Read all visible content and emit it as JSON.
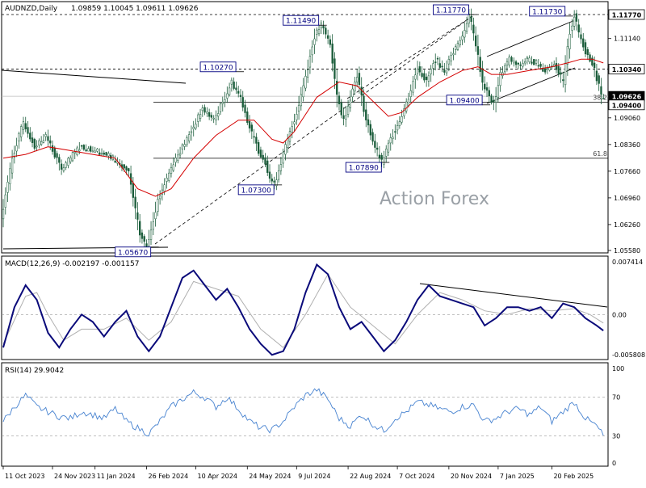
{
  "header": {
    "symbol": "AUDNZD,Daily",
    "ohlc": "1.09859 1.10045 1.09611 1.09626"
  },
  "watermark": "Action Forex",
  "colors": {
    "candle": "#1a5c3a",
    "ema": "#d40000",
    "macd_line": "#0a0a7a",
    "macd_signal": "#b0b0b0",
    "rsi": "#4682d0",
    "level_box": "#000080"
  },
  "chart_data": [
    {
      "type": "candlestick",
      "name": "price",
      "title": "AUDNZD,Daily",
      "ylim": [
        1.0558,
        1.1177
      ],
      "y_ticks": [
        "1.11770",
        "1.11140",
        "1.10340",
        "1.09626",
        "1.09400",
        "1.09060",
        "1.08360",
        "1.07660",
        "1.06960",
        "1.06260",
        "1.05580"
      ],
      "current_price": 1.09626,
      "close_path": [
        [
          0,
          1.064
        ],
        [
          5,
          1.08
        ],
        [
          10,
          1.0895
        ],
        [
          15,
          1.083
        ],
        [
          20,
          1.086
        ],
        [
          27,
          1.077
        ],
        [
          35,
          1.083
        ],
        [
          43,
          1.082
        ],
        [
          50,
          1.08
        ],
        [
          57,
          1.076
        ],
        [
          62,
          1.06
        ],
        [
          65,
          1.0567
        ],
        [
          70,
          1.069
        ],
        [
          77,
          1.079
        ],
        [
          84,
          1.086
        ],
        [
          90,
          1.093
        ],
        [
          95,
          1.09
        ],
        [
          100,
          1.096
        ],
        [
          103,
          1.1
        ],
        [
          107,
          1.096
        ],
        [
          111,
          1.088
        ],
        [
          115,
          1.082
        ],
        [
          118,
          1.079
        ],
        [
          120,
          1.075
        ],
        [
          122,
          1.073
        ],
        [
          127,
          1.083
        ],
        [
          132,
          1.092
        ],
        [
          137,
          1.104
        ],
        [
          140,
          1.112
        ],
        [
          143,
          1.1149
        ],
        [
          147,
          1.11
        ],
        [
          150,
          1.096
        ],
        [
          153,
          1.09
        ],
        [
          156,
          1.096
        ],
        [
          159,
          1.102
        ],
        [
          163,
          1.09
        ],
        [
          167,
          1.083
        ],
        [
          170,
          1.0789
        ],
        [
          174,
          1.085
        ],
        [
          178,
          1.09
        ],
        [
          182,
          1.096
        ],
        [
          186,
          1.104
        ],
        [
          190,
          1.1
        ],
        [
          194,
          1.106
        ],
        [
          198,
          1.103
        ],
        [
          202,
          1.108
        ],
        [
          206,
          1.112
        ],
        [
          209,
          1.1177
        ],
        [
          212,
          1.11
        ],
        [
          215,
          1.1
        ],
        [
          218,
          1.096
        ],
        [
          220,
          1.094
        ],
        [
          223,
          1.102
        ],
        [
          227,
          1.106
        ],
        [
          231,
          1.104
        ],
        [
          235,
          1.106
        ],
        [
          239,
          1.105
        ],
        [
          243,
          1.103
        ],
        [
          247,
          1.105
        ],
        [
          251,
          1.1
        ],
        [
          254,
          1.113
        ],
        [
          256,
          1.1173
        ],
        [
          258,
          1.113
        ],
        [
          261,
          1.108
        ],
        [
          264,
          1.105
        ],
        [
          267,
          1.099
        ],
        [
          268,
          1.09626
        ]
      ],
      "ema_path": [
        [
          0,
          1.08
        ],
        [
          10,
          1.081
        ],
        [
          20,
          1.083
        ],
        [
          30,
          1.082
        ],
        [
          40,
          1.081
        ],
        [
          50,
          1.08
        ],
        [
          60,
          1.072
        ],
        [
          68,
          1.07
        ],
        [
          75,
          1.072
        ],
        [
          85,
          1.08
        ],
        [
          95,
          1.086
        ],
        [
          105,
          1.09
        ],
        [
          112,
          1.09
        ],
        [
          120,
          1.085
        ],
        [
          125,
          1.084
        ],
        [
          130,
          1.087
        ],
        [
          140,
          1.096
        ],
        [
          150,
          1.1
        ],
        [
          158,
          1.099
        ],
        [
          165,
          1.095
        ],
        [
          172,
          1.091
        ],
        [
          178,
          1.092
        ],
        [
          185,
          1.096
        ],
        [
          195,
          1.1
        ],
        [
          205,
          1.103
        ],
        [
          212,
          1.104
        ],
        [
          218,
          1.102
        ],
        [
          225,
          1.102
        ],
        [
          235,
          1.103
        ],
        [
          245,
          1.104
        ],
        [
          252,
          1.105
        ],
        [
          258,
          1.106
        ],
        [
          263,
          1.106
        ],
        [
          268,
          1.105
        ]
      ],
      "levels": [
        {
          "label": "1.05670",
          "bar": 50,
          "value": 1.0567
        },
        {
          "label": "1.10270",
          "bar": 88,
          "value": 1.1027
        },
        {
          "label": "1.07300",
          "bar": 105,
          "value": 1.073
        },
        {
          "label": "1.11490",
          "bar": 125,
          "value": 1.1149
        },
        {
          "label": "1.07890",
          "bar": 153,
          "value": 1.0789
        },
        {
          "label": "1.11770",
          "bar": 192,
          "value": 1.1177
        },
        {
          "label": "1.09400",
          "bar": 198,
          "value": 1.094
        },
        {
          "label": "1.11730",
          "bar": 235,
          "value": 1.1173
        }
      ],
      "fib": [
        {
          "label": "38.2",
          "value": 1.0947
        },
        {
          "label": "61.8",
          "value": 1.08
        }
      ],
      "price_tags": [
        {
          "label": "1.11770",
          "value": 1.1177,
          "filled": false
        },
        {
          "label": "1.10340",
          "value": 1.1034,
          "filled": false
        },
        {
          "label": "1.09626",
          "value": 1.09626,
          "filled": true
        },
        {
          "label": "1.09400",
          "value": 1.094,
          "filled": false
        }
      ]
    },
    {
      "type": "line",
      "name": "macd",
      "title": "MACD(12,26,9) -0.002197 -0.001157",
      "ylim": [
        -0.005808,
        0.007414
      ],
      "y_ticks": [
        "0.007414",
        "0.00",
        "-0.005808"
      ],
      "macd_path": [
        [
          0,
          -0.0045
        ],
        [
          5,
          0.001
        ],
        [
          10,
          0.004
        ],
        [
          15,
          0.002
        ],
        [
          20,
          -0.0025
        ],
        [
          25,
          -0.0045
        ],
        [
          30,
          -0.002
        ],
        [
          35,
          0.0
        ],
        [
          40,
          -0.001
        ],
        [
          45,
          -0.003
        ],
        [
          50,
          -0.001
        ],
        [
          55,
          0.0005
        ],
        [
          60,
          -0.003
        ],
        [
          65,
          -0.005
        ],
        [
          70,
          -0.003
        ],
        [
          75,
          0.001
        ],
        [
          80,
          0.005
        ],
        [
          85,
          0.006
        ],
        [
          90,
          0.004
        ],
        [
          95,
          0.002
        ],
        [
          100,
          0.0035
        ],
        [
          105,
          0.001
        ],
        [
          110,
          -0.002
        ],
        [
          115,
          -0.004
        ],
        [
          120,
          -0.0055
        ],
        [
          125,
          -0.005
        ],
        [
          130,
          -0.002
        ],
        [
          135,
          0.003
        ],
        [
          140,
          0.0068
        ],
        [
          145,
          0.0055
        ],
        [
          150,
          0.001
        ],
        [
          155,
          -0.002
        ],
        [
          160,
          -0.001
        ],
        [
          165,
          -0.003
        ],
        [
          170,
          -0.005
        ],
        [
          175,
          -0.0035
        ],
        [
          180,
          -0.001
        ],
        [
          185,
          0.002
        ],
        [
          190,
          0.004
        ],
        [
          195,
          0.0025
        ],
        [
          200,
          0.002
        ],
        [
          205,
          0.0015
        ],
        [
          210,
          0.001
        ],
        [
          215,
          -0.0015
        ],
        [
          220,
          -0.0005
        ],
        [
          225,
          0.001
        ],
        [
          230,
          0.001
        ],
        [
          235,
          0.0005
        ],
        [
          240,
          0.001
        ],
        [
          245,
          -0.0005
        ],
        [
          250,
          0.0015
        ],
        [
          255,
          0.001
        ],
        [
          260,
          -0.0005
        ],
        [
          265,
          -0.0015
        ],
        [
          268,
          -0.002197
        ]
      ],
      "signal_path": [
        [
          0,
          -0.004
        ],
        [
          10,
          0.0025
        ],
        [
          15,
          0.003
        ],
        [
          20,
          0.0
        ],
        [
          27,
          -0.0035
        ],
        [
          35,
          -0.002
        ],
        [
          45,
          -0.002
        ],
        [
          55,
          -0.0005
        ],
        [
          65,
          -0.0035
        ],
        [
          75,
          -0.001
        ],
        [
          85,
          0.0045
        ],
        [
          95,
          0.0035
        ],
        [
          105,
          0.0025
        ],
        [
          115,
          -0.002
        ],
        [
          125,
          -0.0045
        ],
        [
          135,
          0.0
        ],
        [
          145,
          0.0055
        ],
        [
          155,
          0.001
        ],
        [
          165,
          -0.0015
        ],
        [
          175,
          -0.004
        ],
        [
          185,
          0.0
        ],
        [
          195,
          0.003
        ],
        [
          205,
          0.002
        ],
        [
          215,
          0.0005
        ],
        [
          225,
          0.0
        ],
        [
          235,
          0.0008
        ],
        [
          245,
          0.0005
        ],
        [
          255,
          0.0008
        ],
        [
          262,
          0.0
        ],
        [
          268,
          -0.001157
        ]
      ]
    },
    {
      "type": "line",
      "name": "rsi",
      "title": "RSI(14) 29.9042",
      "ylim": [
        0,
        100
      ],
      "y_ticks": [
        "100",
        "70",
        "30",
        "0"
      ],
      "levels": [
        70,
        30
      ],
      "rsi_path": [
        [
          0,
          45
        ],
        [
          5,
          60
        ],
        [
          10,
          72
        ],
        [
          15,
          60
        ],
        [
          20,
          55
        ],
        [
          25,
          50
        ],
        [
          30,
          48
        ],
        [
          35,
          55
        ],
        [
          40,
          52
        ],
        [
          45,
          48
        ],
        [
          50,
          58
        ],
        [
          55,
          45
        ],
        [
          60,
          38
        ],
        [
          65,
          32
        ],
        [
          70,
          45
        ],
        [
          75,
          60
        ],
        [
          80,
          68
        ],
        [
          85,
          75
        ],
        [
          90,
          70
        ],
        [
          95,
          60
        ],
        [
          100,
          70
        ],
        [
          105,
          58
        ],
        [
          110,
          45
        ],
        [
          115,
          38
        ],
        [
          120,
          36
        ],
        [
          125,
          45
        ],
        [
          130,
          60
        ],
        [
          135,
          72
        ],
        [
          140,
          78
        ],
        [
          145,
          68
        ],
        [
          150,
          48
        ],
        [
          155,
          40
        ],
        [
          160,
          52
        ],
        [
          165,
          42
        ],
        [
          170,
          35
        ],
        [
          175,
          48
        ],
        [
          180,
          55
        ],
        [
          185,
          65
        ],
        [
          190,
          62
        ],
        [
          195,
          58
        ],
        [
          200,
          55
        ],
        [
          205,
          60
        ],
        [
          210,
          62
        ],
        [
          215,
          45
        ],
        [
          220,
          48
        ],
        [
          225,
          55
        ],
        [
          230,
          58
        ],
        [
          235,
          52
        ],
        [
          240,
          60
        ],
        [
          245,
          45
        ],
        [
          250,
          55
        ],
        [
          255,
          65
        ],
        [
          260,
          48
        ],
        [
          265,
          40
        ],
        [
          268,
          29.9
        ]
      ]
    }
  ],
  "x_axis": {
    "total_bars": 270,
    "labels": [
      {
        "bar": 0,
        "text": "11 Oct 2023"
      },
      {
        "bar": 22,
        "text": "24 Nov 2023"
      },
      {
        "bar": 41,
        "text": "11 Jan 2024"
      },
      {
        "bar": 64,
        "text": "26 Feb 2024"
      },
      {
        "bar": 86,
        "text": "10 Apr 2024"
      },
      {
        "bar": 109,
        "text": "24 May 2024"
      },
      {
        "bar": 131,
        "text": "9 Jul 2024"
      },
      {
        "bar": 154,
        "text": "22 Aug 2024"
      },
      {
        "bar": 176,
        "text": "7 Oct 2024"
      },
      {
        "bar": 199,
        "text": "20 Nov 2024"
      },
      {
        "bar": 221,
        "text": "7 Jan 2025"
      },
      {
        "bar": 245,
        "text": "20 Feb 2025"
      }
    ]
  }
}
